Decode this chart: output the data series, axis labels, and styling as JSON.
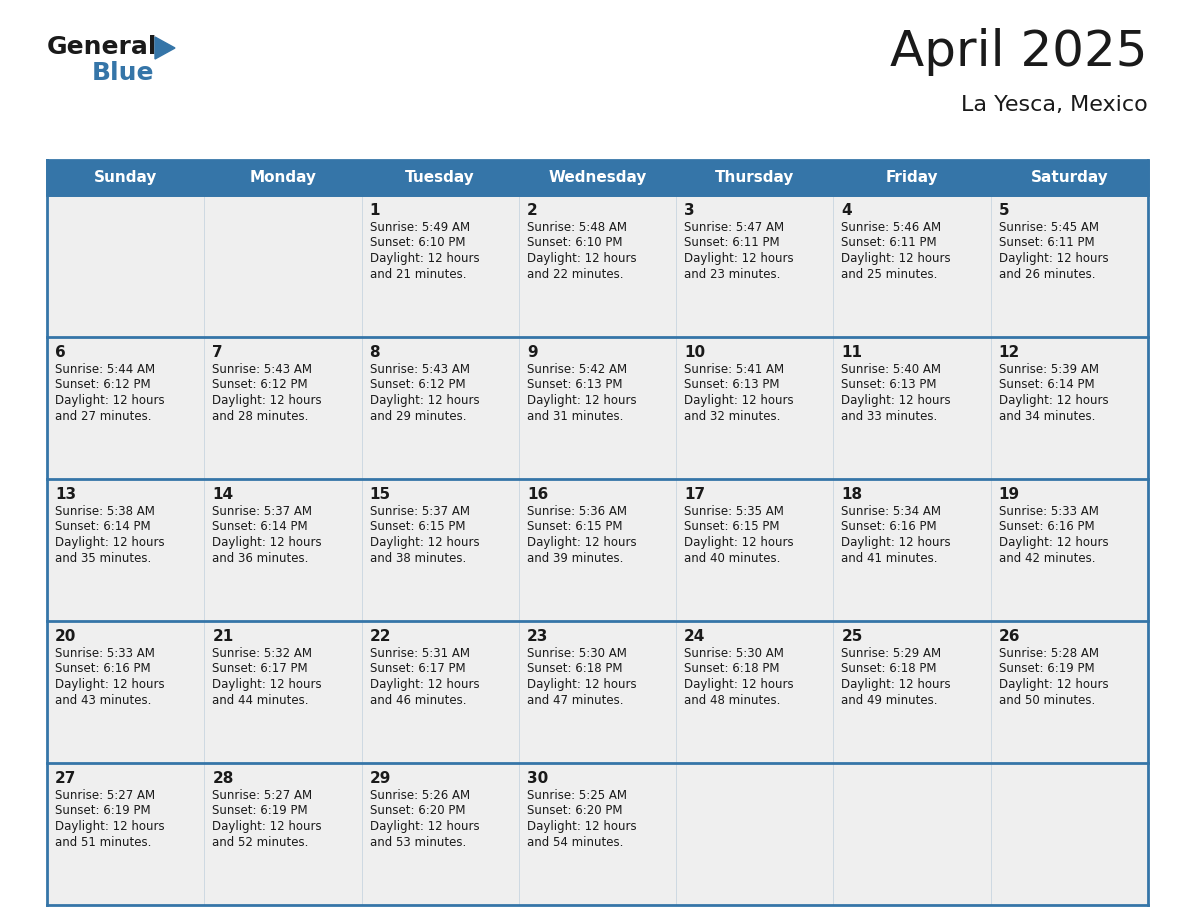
{
  "title": "April 2025",
  "subtitle": "La Yesca, Mexico",
  "header_color": "#3575a8",
  "header_text_color": "#ffffff",
  "cell_bg_color": "#efefef",
  "border_color": "#3575a8",
  "text_color": "#1a1a1a",
  "days_of_week": [
    "Sunday",
    "Monday",
    "Tuesday",
    "Wednesday",
    "Thursday",
    "Friday",
    "Saturday"
  ],
  "weeks": [
    [
      {
        "day": null,
        "text": ""
      },
      {
        "day": null,
        "text": ""
      },
      {
        "day": 1,
        "text": "Sunrise: 5:49 AM\nSunset: 6:10 PM\nDaylight: 12 hours\nand 21 minutes."
      },
      {
        "day": 2,
        "text": "Sunrise: 5:48 AM\nSunset: 6:10 PM\nDaylight: 12 hours\nand 22 minutes."
      },
      {
        "day": 3,
        "text": "Sunrise: 5:47 AM\nSunset: 6:11 PM\nDaylight: 12 hours\nand 23 minutes."
      },
      {
        "day": 4,
        "text": "Sunrise: 5:46 AM\nSunset: 6:11 PM\nDaylight: 12 hours\nand 25 minutes."
      },
      {
        "day": 5,
        "text": "Sunrise: 5:45 AM\nSunset: 6:11 PM\nDaylight: 12 hours\nand 26 minutes."
      }
    ],
    [
      {
        "day": 6,
        "text": "Sunrise: 5:44 AM\nSunset: 6:12 PM\nDaylight: 12 hours\nand 27 minutes."
      },
      {
        "day": 7,
        "text": "Sunrise: 5:43 AM\nSunset: 6:12 PM\nDaylight: 12 hours\nand 28 minutes."
      },
      {
        "day": 8,
        "text": "Sunrise: 5:43 AM\nSunset: 6:12 PM\nDaylight: 12 hours\nand 29 minutes."
      },
      {
        "day": 9,
        "text": "Sunrise: 5:42 AM\nSunset: 6:13 PM\nDaylight: 12 hours\nand 31 minutes."
      },
      {
        "day": 10,
        "text": "Sunrise: 5:41 AM\nSunset: 6:13 PM\nDaylight: 12 hours\nand 32 minutes."
      },
      {
        "day": 11,
        "text": "Sunrise: 5:40 AM\nSunset: 6:13 PM\nDaylight: 12 hours\nand 33 minutes."
      },
      {
        "day": 12,
        "text": "Sunrise: 5:39 AM\nSunset: 6:14 PM\nDaylight: 12 hours\nand 34 minutes."
      }
    ],
    [
      {
        "day": 13,
        "text": "Sunrise: 5:38 AM\nSunset: 6:14 PM\nDaylight: 12 hours\nand 35 minutes."
      },
      {
        "day": 14,
        "text": "Sunrise: 5:37 AM\nSunset: 6:14 PM\nDaylight: 12 hours\nand 36 minutes."
      },
      {
        "day": 15,
        "text": "Sunrise: 5:37 AM\nSunset: 6:15 PM\nDaylight: 12 hours\nand 38 minutes."
      },
      {
        "day": 16,
        "text": "Sunrise: 5:36 AM\nSunset: 6:15 PM\nDaylight: 12 hours\nand 39 minutes."
      },
      {
        "day": 17,
        "text": "Sunrise: 5:35 AM\nSunset: 6:15 PM\nDaylight: 12 hours\nand 40 minutes."
      },
      {
        "day": 18,
        "text": "Sunrise: 5:34 AM\nSunset: 6:16 PM\nDaylight: 12 hours\nand 41 minutes."
      },
      {
        "day": 19,
        "text": "Sunrise: 5:33 AM\nSunset: 6:16 PM\nDaylight: 12 hours\nand 42 minutes."
      }
    ],
    [
      {
        "day": 20,
        "text": "Sunrise: 5:33 AM\nSunset: 6:16 PM\nDaylight: 12 hours\nand 43 minutes."
      },
      {
        "day": 21,
        "text": "Sunrise: 5:32 AM\nSunset: 6:17 PM\nDaylight: 12 hours\nand 44 minutes."
      },
      {
        "day": 22,
        "text": "Sunrise: 5:31 AM\nSunset: 6:17 PM\nDaylight: 12 hours\nand 46 minutes."
      },
      {
        "day": 23,
        "text": "Sunrise: 5:30 AM\nSunset: 6:18 PM\nDaylight: 12 hours\nand 47 minutes."
      },
      {
        "day": 24,
        "text": "Sunrise: 5:30 AM\nSunset: 6:18 PM\nDaylight: 12 hours\nand 48 minutes."
      },
      {
        "day": 25,
        "text": "Sunrise: 5:29 AM\nSunset: 6:18 PM\nDaylight: 12 hours\nand 49 minutes."
      },
      {
        "day": 26,
        "text": "Sunrise: 5:28 AM\nSunset: 6:19 PM\nDaylight: 12 hours\nand 50 minutes."
      }
    ],
    [
      {
        "day": 27,
        "text": "Sunrise: 5:27 AM\nSunset: 6:19 PM\nDaylight: 12 hours\nand 51 minutes."
      },
      {
        "day": 28,
        "text": "Sunrise: 5:27 AM\nSunset: 6:19 PM\nDaylight: 12 hours\nand 52 minutes."
      },
      {
        "day": 29,
        "text": "Sunrise: 5:26 AM\nSunset: 6:20 PM\nDaylight: 12 hours\nand 53 minutes."
      },
      {
        "day": 30,
        "text": "Sunrise: 5:25 AM\nSunset: 6:20 PM\nDaylight: 12 hours\nand 54 minutes."
      },
      {
        "day": null,
        "text": ""
      },
      {
        "day": null,
        "text": ""
      },
      {
        "day": null,
        "text": ""
      }
    ]
  ],
  "logo_general_color": "#1a1a1a",
  "logo_blue_color": "#3575a8",
  "bg_color": "#ffffff",
  "title_fontsize": 36,
  "subtitle_fontsize": 16,
  "header_fontsize": 11,
  "day_num_fontsize": 11,
  "cell_text_fontsize": 8.5
}
